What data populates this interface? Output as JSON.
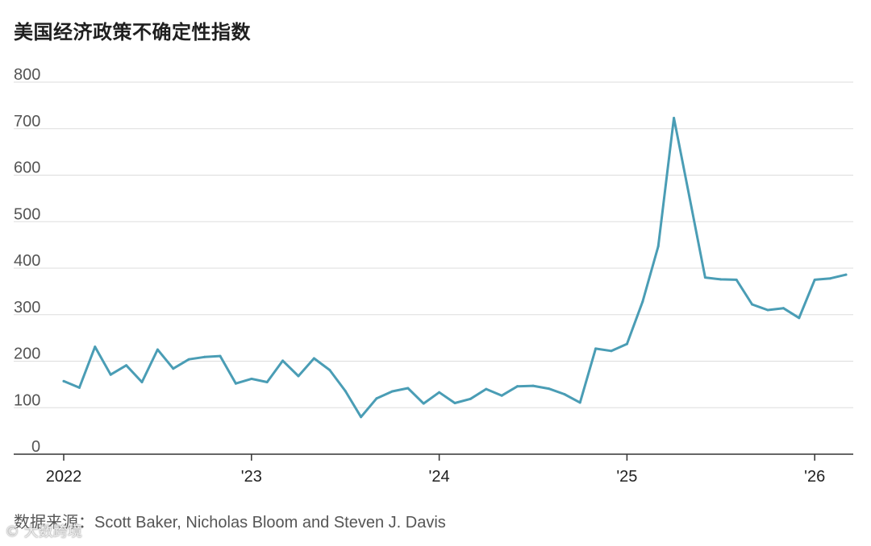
{
  "title": "美国经济政策不确定性指数",
  "source": "数据来源：Scott Baker, Nicholas Bloom and Steven J. Davis",
  "watermark": "© 大数跨境",
  "colors": {
    "line": "#4a9db5",
    "grid": "#dddddd",
    "axis": "#333333"
  },
  "chart_data": {
    "type": "line",
    "title": "美国经济政策不确定性指数",
    "xlabel": "",
    "ylabel": "",
    "ylim": [
      0,
      800
    ],
    "yticks": [
      0,
      100,
      200,
      300,
      400,
      500,
      600,
      700,
      800
    ],
    "ytick_labels": [
      "0",
      "100",
      "200",
      "300",
      "400",
      "500",
      "600",
      "700",
      "800"
    ],
    "xticks": [
      {
        "label": "2022",
        "date": "2022-01"
      },
      {
        "label": "'23",
        "date": "2023-01"
      },
      {
        "label": "'24",
        "date": "2024-01"
      },
      {
        "label": "'25",
        "date": "2025-01"
      },
      {
        "label": "'26",
        "date": "2026-01"
      }
    ],
    "grid": true,
    "series": [
      {
        "x": [
          "2022-01",
          "2022-02",
          "2022-03",
          "2022-04",
          "2022-05",
          "2022-06",
          "2022-07",
          "2022-08",
          "2022-09",
          "2022-10",
          "2022-11",
          "2022-12",
          "2023-01",
          "2023-02",
          "2023-03",
          "2023-04",
          "2023-05",
          "2023-06",
          "2023-07",
          "2023-08",
          "2023-09",
          "2023-10",
          "2023-11",
          "2023-12",
          "2024-01",
          "2024-02",
          "2024-03",
          "2024-04",
          "2024-05",
          "2024-06",
          "2024-07",
          "2024-08",
          "2024-09",
          "2024-10",
          "2024-11",
          "2024-12",
          "2025-01",
          "2025-02",
          "2025-03",
          "2025-04",
          "2025-05",
          "2025-06",
          "2025-07",
          "2025-08",
          "2025-09",
          "2025-10",
          "2025-11",
          "2025-12",
          "2026-01",
          "2026-02",
          "2026-03"
        ],
        "values": [
          157,
          143,
          231,
          171,
          191,
          155,
          225,
          184,
          204,
          209,
          211,
          152,
          162,
          155,
          201,
          168,
          206,
          181,
          136,
          80,
          120,
          135,
          142,
          109,
          133,
          110,
          119,
          140,
          126,
          146,
          147,
          141,
          129,
          111,
          227,
          222,
          237,
          328,
          447,
          723,
          552,
          380,
          376,
          375,
          322,
          310,
          314,
          293,
          375,
          378,
          386
        ]
      }
    ]
  }
}
